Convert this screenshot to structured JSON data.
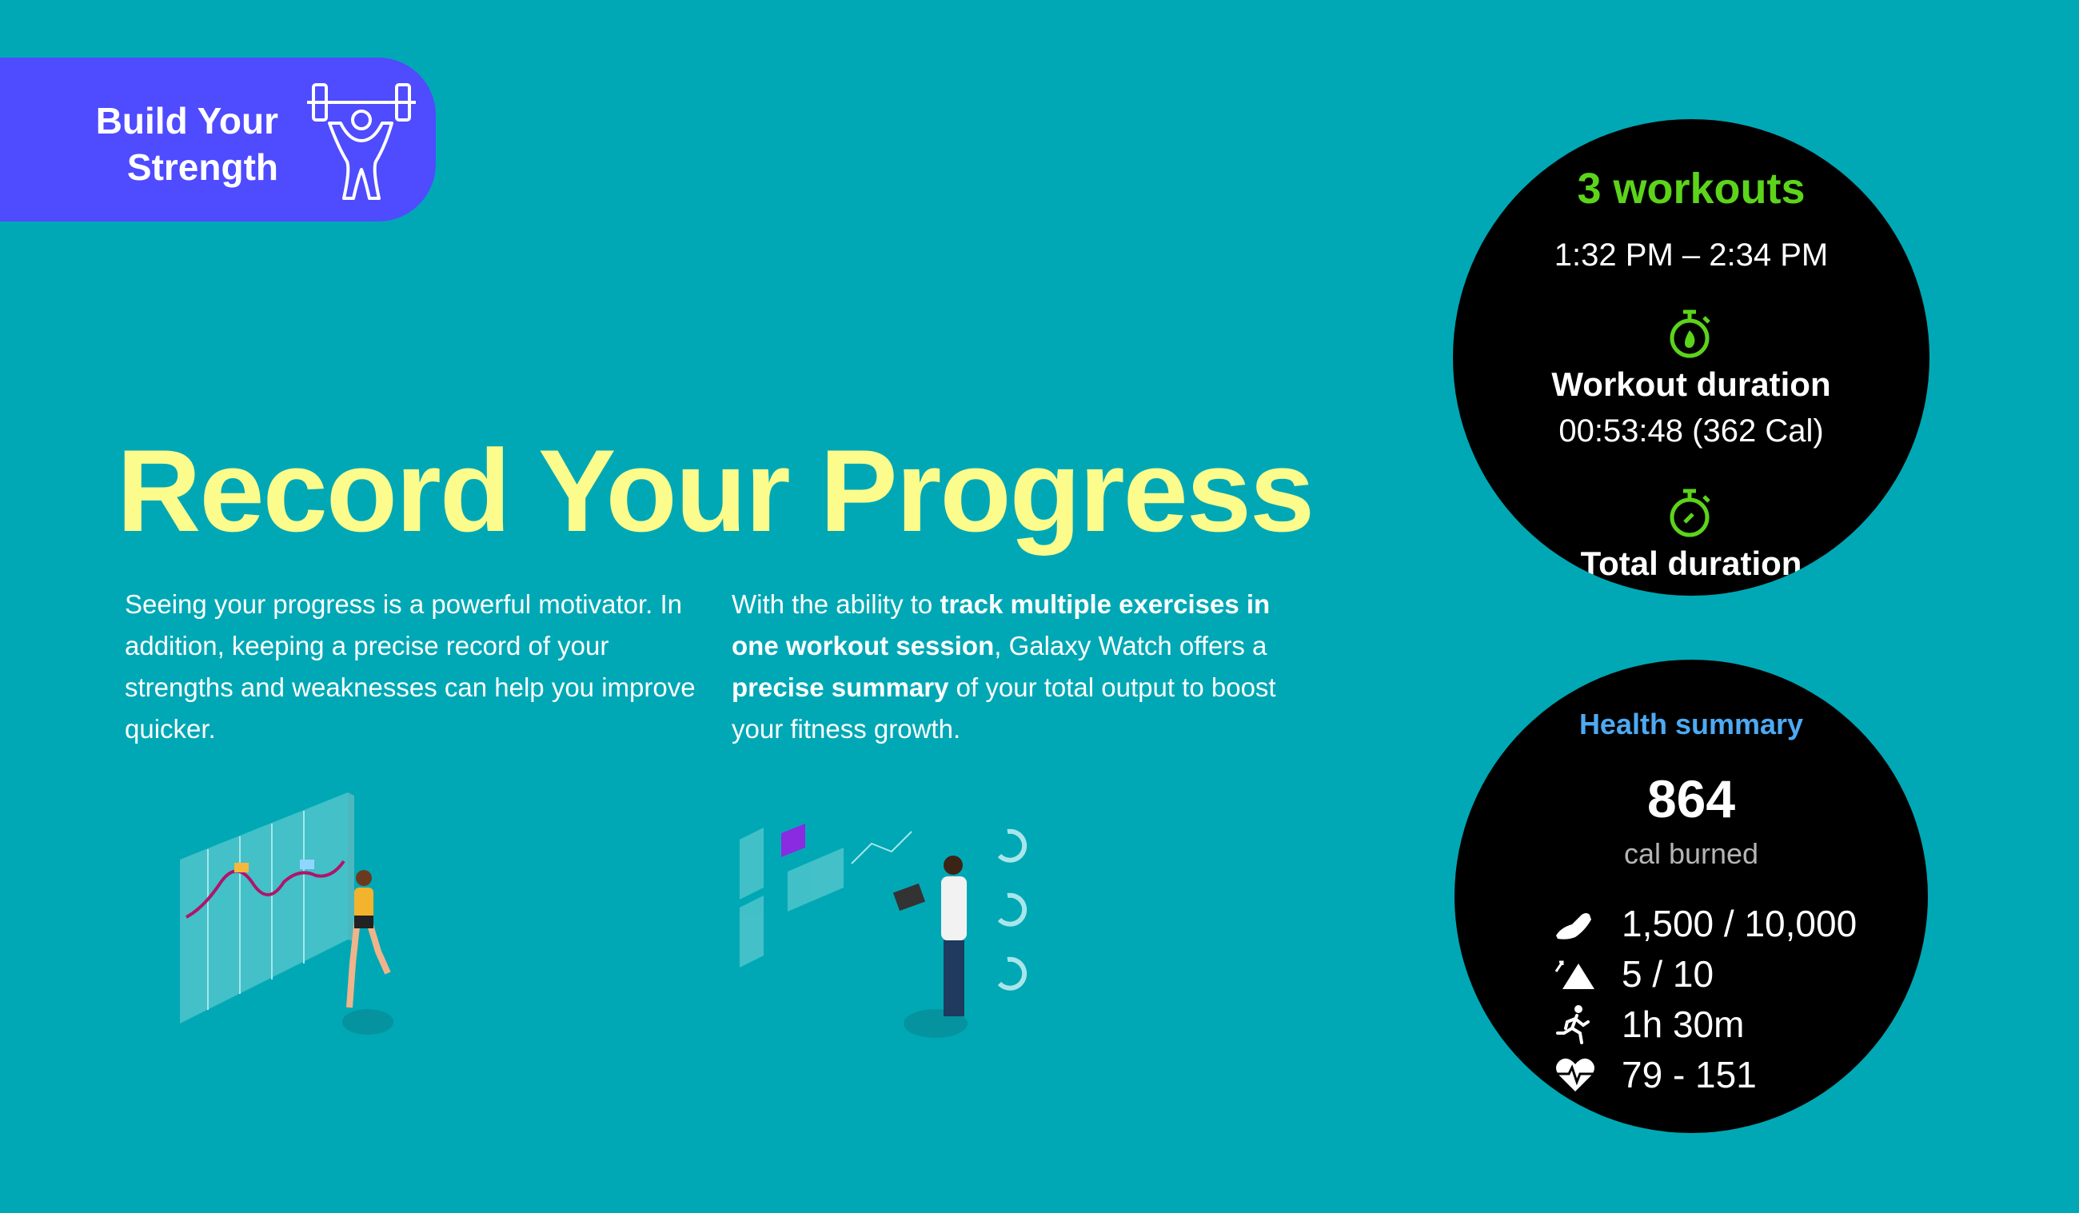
{
  "banner": {
    "line1": "Build Your",
    "line2": "Strength",
    "icon": "weightlifter-icon",
    "color": "#4f4bff"
  },
  "title": "Record Your Progress",
  "paragraph1": "Seeing your progress is a powerful motivator. In addition, keeping a precise record of your strengths and weaknesses can help you improve quicker.",
  "paragraph2": {
    "t1": "With the ability to ",
    "b1": "track multiple exercises in one workout session",
    "t2": ", Galaxy Watch offers a ",
    "b2": "precise summary",
    "t3": " of your total output to boost your fitness growth."
  },
  "workout_watch": {
    "count": "3 workouts",
    "time_range": "1:32 PM – 2:34 PM",
    "workout_label": "Workout duration",
    "workout_value": "00:53:48 (362 Cal)",
    "total_label": "Total duration",
    "accent": "#5cd41a"
  },
  "health_watch": {
    "title": "Health summary",
    "calories": "864",
    "calories_label": "cal burned",
    "rows": [
      {
        "icon": "shoe-icon",
        "value": "1,500 / 10,000"
      },
      {
        "icon": "floors-climbed-icon",
        "value": "5 / 10"
      },
      {
        "icon": "running-icon",
        "value": "1h 30m"
      },
      {
        "icon": "heart-rate-icon",
        "value": "79 - 151"
      }
    ],
    "accent": "#4ea9f2"
  },
  "colors": {
    "background": "#00a8b5",
    "title": "#fcfc8c"
  }
}
